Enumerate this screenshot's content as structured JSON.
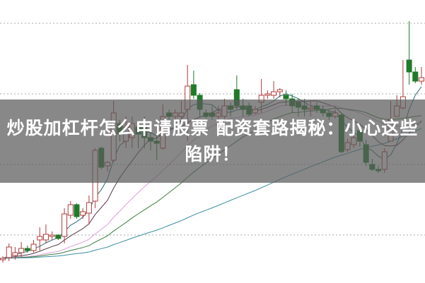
{
  "headline": {
    "line1": "炒股加杠杆怎么申请股票 配资套路揭秘：小心这些",
    "line2": "陷阱！"
  },
  "chart_data": {
    "type": "candlestick",
    "ylim": [
      0,
      400
    ],
    "grid": "horizontal dotted",
    "gridlines": [
      67,
      167,
      267,
      367
    ],
    "candle_fields": [
      "open",
      "close",
      "high",
      "low"
    ],
    "candles": [
      [
        32,
        34,
        37,
        28
      ],
      [
        35,
        50,
        55,
        30
      ],
      [
        38,
        42,
        50,
        32
      ],
      [
        42,
        48,
        57,
        35
      ],
      [
        48,
        45,
        52,
        42
      ],
      [
        45,
        54,
        60,
        42
      ],
      [
        60,
        65,
        78,
        45
      ],
      [
        60,
        68,
        82,
        55
      ],
      [
        65,
        67,
        72,
        60
      ],
      [
        67,
        62,
        68,
        60
      ],
      [
        65,
        97,
        105,
        55
      ],
      [
        95,
        110,
        115,
        90
      ],
      [
        110,
        93,
        112,
        90
      ],
      [
        95,
        100,
        105,
        90
      ],
      [
        98,
        113,
        123,
        82
      ],
      [
        115,
        187,
        190,
        105
      ],
      [
        190,
        163,
        192,
        160
      ],
      [
        165,
        170,
        172,
        157
      ],
      [
        173,
        240,
        257,
        170
      ],
      [
        225,
        210,
        230,
        200
      ],
      [
        200,
        220,
        235,
        190
      ],
      [
        205,
        225,
        235,
        190
      ],
      [
        220,
        210,
        225,
        190
      ],
      [
        220,
        205,
        235,
        190
      ],
      [
        205,
        200,
        215,
        187
      ],
      [
        200,
        197,
        210,
        173
      ],
      [
        190,
        235,
        252,
        188
      ],
      [
        240,
        235,
        245,
        225
      ],
      [
        235,
        240,
        245,
        220
      ],
      [
        235,
        240,
        257,
        225
      ],
      [
        245,
        278,
        308,
        200
      ],
      [
        280,
        265,
        300,
        260
      ],
      [
        265,
        245,
        268,
        235
      ],
      [
        240,
        235,
        245,
        232
      ],
      [
        240,
        235,
        250,
        230
      ],
      [
        235,
        240,
        250,
        230
      ],
      [
        235,
        250,
        260,
        230
      ],
      [
        250,
        245,
        255,
        235
      ],
      [
        273,
        250,
        293,
        245
      ],
      [
        250,
        245,
        260,
        235
      ],
      [
        250,
        238,
        255,
        235
      ],
      [
        240,
        245,
        250,
        238
      ],
      [
        255,
        265,
        288,
        240
      ],
      [
        265,
        267,
        272,
        260
      ],
      [
        265,
        270,
        285,
        260
      ],
      [
        270,
        273,
        275,
        262
      ],
      [
        265,
        260,
        272,
        250
      ],
      [
        260,
        250,
        267,
        240
      ],
      [
        255,
        248,
        260,
        235
      ],
      [
        250,
        245,
        260,
        235
      ],
      [
        245,
        247,
        257,
        235
      ],
      [
        250,
        245,
        255,
        240
      ],
      [
        245,
        240,
        250,
        235
      ],
      [
        240,
        235,
        245,
        230
      ],
      [
        235,
        240,
        245,
        232
      ],
      [
        237,
        185,
        240,
        183
      ],
      [
        188,
        198,
        203,
        185
      ],
      [
        195,
        205,
        212,
        190
      ],
      [
        215,
        200,
        218,
        192
      ],
      [
        195,
        170,
        202,
        165
      ],
      [
        167,
        160,
        175,
        158
      ],
      [
        160,
        158,
        165,
        155
      ],
      [
        160,
        185,
        190,
        155
      ],
      [
        200,
        230,
        257,
        200
      ],
      [
        235,
        250,
        265,
        235
      ],
      [
        247,
        263,
        315,
        245
      ],
      [
        315,
        298,
        370,
        280
      ],
      [
        298,
        285,
        305,
        282
      ],
      [
        285,
        290,
        305,
        280
      ]
    ],
    "moving_averages": [
      {
        "period": 5,
        "color": "#2f6b78"
      },
      {
        "period": 10,
        "color": "#5a3a4a"
      },
      {
        "period": 20,
        "color": "#d8a0d8"
      },
      {
        "period": 30,
        "color": "#3d7d3d"
      },
      {
        "period": 60,
        "color": "#3a8fa0"
      }
    ],
    "colors": {
      "up": "#b03a3a",
      "down": "#1f7a2a",
      "grid": "#aaaaaa"
    }
  }
}
